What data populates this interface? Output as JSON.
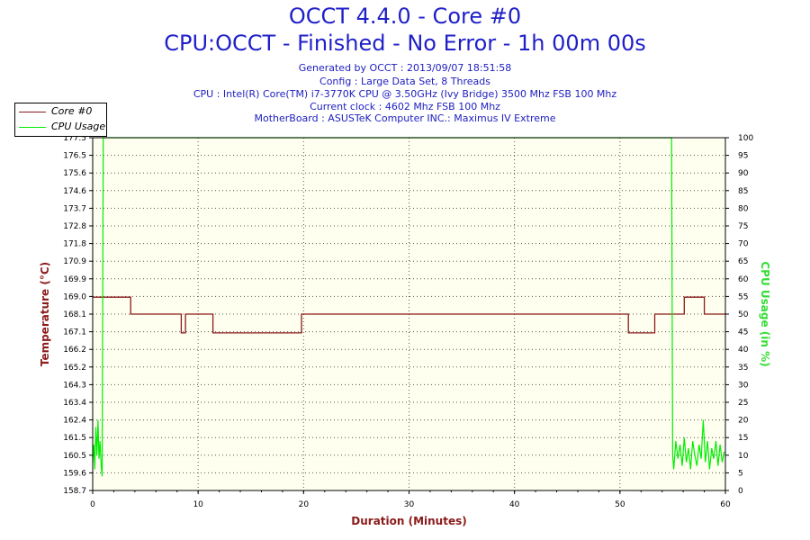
{
  "header": {
    "title": "OCCT 4.4.0 - Core #0",
    "subtitle": "CPU:OCCT - Finished - No Error - 1h 00m 00s",
    "info_lines": [
      "Generated by OCCT : 2013/09/07 18:51:58",
      "Config : Large Data Set, 8 Threads",
      "CPU : Intel(R) Core(TM) i7-3770K CPU @ 3.50GHz (Ivy Bridge) 3500 Mhz FSB 100 Mhz",
      "Current clock : 4602 Mhz FSB 100 Mhz",
      "MotherBoard : ASUSTeK Computer INC.: Maximus IV Extreme"
    ]
  },
  "colors": {
    "temperature": "#8b1a1a",
    "cpu_usage": "#00ee00",
    "plot_background": "#fffff0",
    "title": "#1f1fc8"
  },
  "chart_data": {
    "type": "line",
    "xlabel": "Duration (Minutes)",
    "ylabel_left": "Temperature (°C)",
    "ylabel_right": "CPU Usage (in %)",
    "xlim": [
      0,
      60
    ],
    "ylim_left": [
      158.7,
      177.5
    ],
    "ylim_right": [
      0,
      100
    ],
    "x_ticks": [
      "0",
      "10",
      "20",
      "30",
      "40",
      "50",
      "60"
    ],
    "y_left_ticks": [
      "177.5",
      "176.5",
      "175.6",
      "174.6",
      "173.7",
      "172.8",
      "171.8",
      "170.9",
      "169.9",
      "169.0",
      "168.1",
      "167.1",
      "166.2",
      "165.2",
      "164.3",
      "163.4",
      "162.4",
      "161.5",
      "160.5",
      "159.6",
      "158.7"
    ],
    "y_right_ticks": [
      "100",
      "95",
      "90",
      "85",
      "80",
      "75",
      "70",
      "65",
      "60",
      "55",
      "50",
      "45",
      "40",
      "35",
      "30",
      "25",
      "20",
      "15",
      "10",
      "5",
      "0"
    ],
    "grid": true,
    "legend_position": "top-left",
    "series": [
      {
        "name": "Core #0",
        "axis": "left",
        "x": [
          0,
          3.6,
          3.6,
          8.4,
          8.4,
          8.8,
          8.8,
          11.4,
          11.4,
          19.8,
          19.8,
          50.8,
          50.8,
          53.3,
          53.3,
          56.1,
          56.1,
          58.0,
          58.0,
          60
        ],
        "y": [
          169.0,
          169.0,
          168.1,
          168.1,
          167.1,
          167.1,
          168.1,
          168.1,
          167.1,
          167.1,
          168.1,
          168.1,
          167.1,
          167.1,
          168.1,
          168.1,
          169.0,
          169.0,
          168.1,
          168.1
        ]
      },
      {
        "name": "CPU Usage",
        "axis": "right",
        "x": [
          0,
          0.1,
          0.2,
          0.3,
          0.4,
          0.5,
          0.6,
          0.7,
          0.8,
          0.9,
          1.0,
          1.1,
          54.9,
          55.0,
          55.1,
          55.3,
          55.5,
          55.7,
          55.9,
          56.1,
          56.3,
          56.5,
          56.7,
          56.9,
          57.1,
          57.3,
          57.5,
          57.7,
          57.9,
          58.1,
          58.3,
          58.5,
          58.7,
          58.9,
          59.1,
          59.3,
          59.5,
          59.7,
          59.9
        ],
        "y": [
          8,
          13,
          6,
          18,
          10,
          20,
          9,
          14,
          7,
          4,
          100,
          100,
          100,
          10,
          6,
          14,
          9,
          13,
          7,
          15,
          8,
          12,
          6,
          14,
          10,
          7,
          13,
          9,
          20,
          8,
          14,
          6,
          12,
          9,
          14,
          7,
          13,
          8,
          11
        ]
      }
    ]
  }
}
